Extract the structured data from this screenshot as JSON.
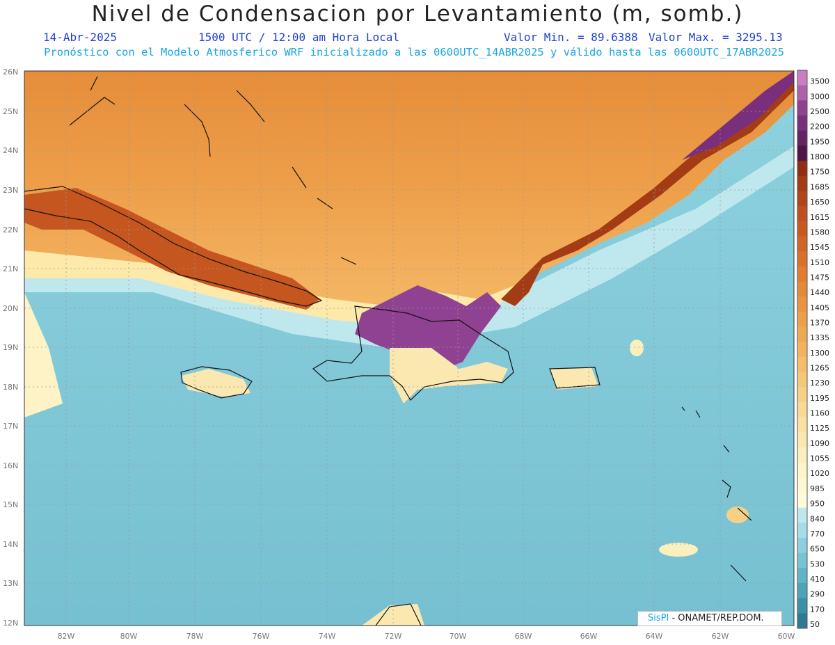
{
  "header": {
    "title": "Nivel de Condensacion por Levantamiento (m, somb.)",
    "date": "14-Abr-2025",
    "time": "1500 UTC / 12:00 am Hora Local",
    "min_label": "Valor Min. = 89.6388",
    "max_label": "Valor Max. = 3295.13",
    "subtitle": "Pronóstico con el Modelo Atmosferico WRF inicializado a las 0600UTC_14ABR2025 y válido hasta las  0600UTC_17ABR2025"
  },
  "map_axes": {
    "lat_ticks": [
      "26N",
      "25N",
      "24N",
      "23N",
      "22N",
      "21N",
      "20N",
      "19N",
      "18N",
      "17N",
      "16N",
      "15N",
      "14N",
      "13N",
      "12N"
    ],
    "lon_ticks": [
      "82W",
      "80W",
      "78W",
      "76W",
      "74W",
      "72W",
      "70W",
      "68W",
      "66W",
      "64W",
      "62W",
      "60W"
    ]
  },
  "legend": {
    "levels": [
      "3500",
      "3000",
      "2500",
      "2200",
      "1950",
      "1800",
      "1750",
      "1685",
      "1650",
      "1615",
      "1580",
      "1545",
      "1510",
      "1475",
      "1440",
      "1405",
      "1370",
      "1335",
      "1300",
      "1265",
      "1230",
      "1195",
      "1160",
      "1125",
      "1090",
      "1055",
      "1020",
      "985",
      "950",
      "840",
      "770",
      "650",
      "530",
      "410",
      "290",
      "170",
      "50"
    ],
    "colors": [
      "#c77fc2",
      "#b061ac",
      "#8f4192",
      "#7a2f7d",
      "#63245f",
      "#4f1546",
      "#8f2e12",
      "#a33b14",
      "#b1451a",
      "#bd501e",
      "#c65a22",
      "#cf6526",
      "#d8712c",
      "#de7d33",
      "#e3893a",
      "#e89441",
      "#eb9f4a",
      "#eea954",
      "#f1b35f",
      "#f3bd6c",
      "#f5c77a",
      "#f7d088",
      "#f9d995",
      "#fae1a3",
      "#fbe8b0",
      "#fcefbe",
      "#fdf4c9",
      "#fef8d2",
      "#fefbdb",
      "#bde9ee",
      "#a3dde6",
      "#8ccfdd",
      "#77c2d3",
      "#62b3c7",
      "#4ea3b9",
      "#3c8fa8",
      "#2f7a92"
    ]
  },
  "credit": {
    "brand": "SisPI",
    "org": "- ONAMET/REP.DOM."
  }
}
